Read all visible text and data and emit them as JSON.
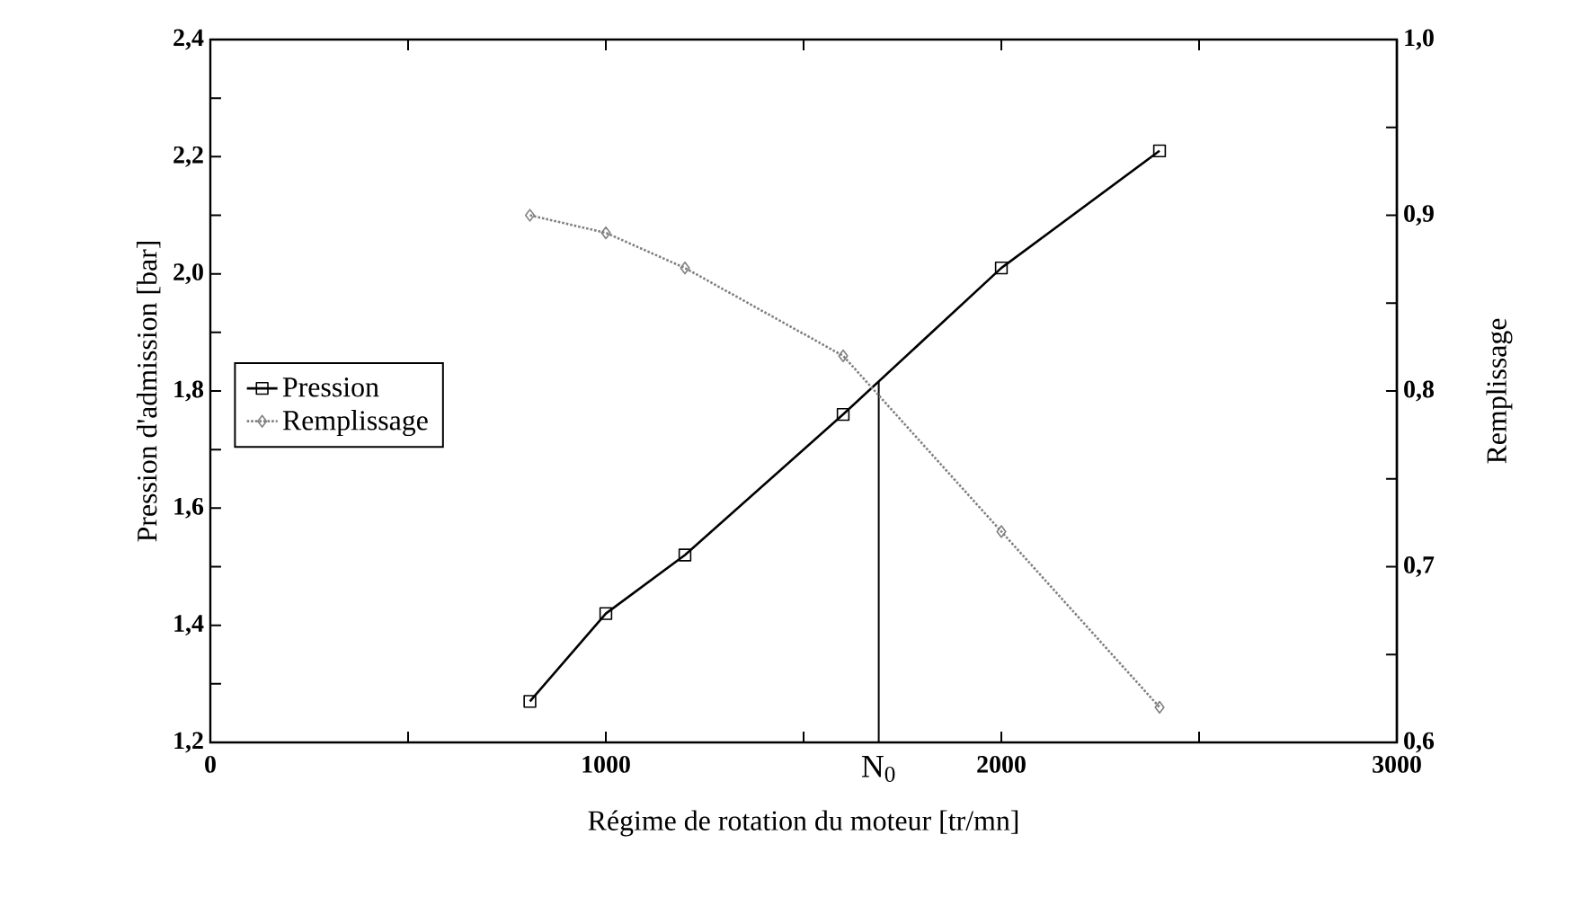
{
  "chart_data": {
    "type": "line",
    "xlabel": "Régime de rotation du moteur [tr/mn]",
    "ylabel": "Pression d'admission [bar]",
    "y2label": "Remplissage",
    "x": [
      808,
      1000,
      1200,
      1600,
      2000,
      2400
    ],
    "series": [
      {
        "name": "Pression",
        "color": "#000000",
        "values": [
          1.27,
          1.42,
          1.52,
          1.76,
          2.01,
          2.21
        ],
        "marker": "square",
        "line_style": "solid"
      },
      {
        "name": "Remplissage",
        "color": "#808080",
        "values": [
          0.9,
          0.89,
          0.87,
          0.82,
          0.72,
          0.62
        ],
        "marker": "diamond",
        "line_style": "dotted",
        "axis": "y2"
      }
    ],
    "xlim": [
      0,
      3000
    ],
    "xticks": [
      0,
      {
        "value": 500,
        "label": null
      },
      1000,
      {
        "value": 1500,
        "label": null
      },
      2000,
      {
        "value": 2500,
        "label": null
      },
      3000
    ],
    "ylim": [
      1.2,
      2.4
    ],
    "yticks": [
      {
        "value": 1.2,
        "label": "1,2"
      },
      {
        "value": 1.3,
        "label": null
      },
      {
        "value": 1.4,
        "label": "1,4"
      },
      {
        "value": 1.5,
        "label": null
      },
      {
        "value": 1.6,
        "label": "1,6"
      },
      {
        "value": 1.7,
        "label": null
      },
      {
        "value": 1.8,
        "label": "1,8"
      },
      {
        "value": 1.9,
        "label": null
      },
      {
        "value": 2.0,
        "label": "2,0"
      },
      {
        "value": 2.1,
        "label": null
      },
      {
        "value": 2.2,
        "label": "2,2"
      },
      {
        "value": 2.3,
        "label": null
      },
      {
        "value": 2.4,
        "label": "2,4"
      }
    ],
    "y2lim": [
      0.6,
      1.0
    ],
    "y2ticks": [
      {
        "value": 0.6,
        "label": "0,6"
      },
      {
        "value": 0.65,
        "label": null
      },
      {
        "value": 0.7,
        "label": "0,7"
      },
      {
        "value": 0.75,
        "label": null
      },
      {
        "value": 0.8,
        "label": "0,8"
      },
      {
        "value": 0.85,
        "label": null
      },
      {
        "value": 0.9,
        "label": "0,9"
      },
      {
        "value": 0.95,
        "label": null
      },
      {
        "value": 1.0,
        "label": "1,0"
      }
    ],
    "ref_lines": [
      {
        "axis": "x",
        "value": 1690,
        "label": "N$_{0}$",
        "color": "#000000"
      }
    ],
    "legend": "left",
    "grid": false
  }
}
